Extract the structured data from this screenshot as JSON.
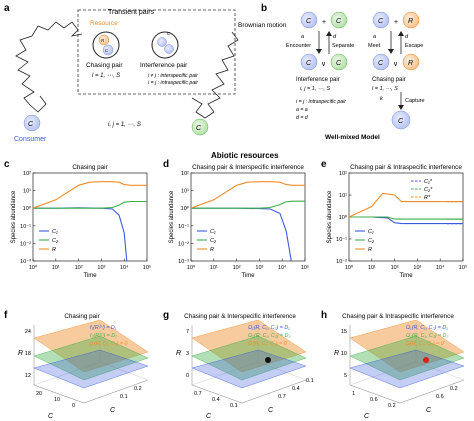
{
  "colors": {
    "blue": "#3b5bdb",
    "orange": "#f08c28",
    "green": "#3fae49",
    "light_blue": "#c9d3f5",
    "light_orange": "#f8c99a",
    "light_green": "#b9e6b0"
  },
  "panel_a": {
    "letter": "a",
    "box_title": "Transient pairs",
    "resource": "Resource",
    "chasing_pair": "Chasing pair",
    "interference_pair": "Interference pair",
    "rj": "R",
    "ci": "C",
    "cij": "C",
    "index_l": "l = 1, ⋯, S",
    "index_ij": "i ≠ j : interspecific pair",
    "index_ii": "i = j : intraspecific pair",
    "brownian": "Brownian motion",
    "consumer": "Consumer",
    "c_left": "C",
    "c_right": "C",
    "bottom_index": "i, j = 1, ⋯, S"
  },
  "panel_b": {
    "letter": "b",
    "encounter": "Encounter",
    "separate": "Separate",
    "meet": "Meet",
    "escape": "Escape",
    "capture": "Capture",
    "interference_pair": "Interference pair",
    "chasing_pair": "Chasing pair",
    "a_ij": "a",
    "d_ij": "d",
    "a_il": "a",
    "d_il": "d",
    "k_il": "k",
    "idx_ij": "i, j = 1, ⋯, S",
    "idx_l": "l = 1, ⋯, S",
    "note_1": "i = j : intraspecific pair",
    "note_2": "a = a",
    "note_3": "d = d",
    "well_mixed": "Well-mixed Model"
  },
  "section_title": "Abiotic resources",
  "chart_data": [
    {
      "panel": "c",
      "type": "line",
      "title": "Chasing pair",
      "xlabel": "Time",
      "ylabel": "Species abundance",
      "x_scale": "log",
      "xlim": [
        1,
        100000
      ],
      "ylim": [
        0.001,
        100
      ],
      "y_scale": "log",
      "x_ticks": [
        "10⁰",
        "10¹",
        "10²",
        "10³",
        "10⁴",
        "10⁵"
      ],
      "y_ticks": [
        "10⁻³",
        "10⁻²",
        "10⁻¹",
        "10⁰",
        "10¹",
        "10²"
      ],
      "series": [
        {
          "name": "C₁",
          "color": "#3b5bdb",
          "x": [
            1,
            10,
            100,
            1000,
            3000,
            6000,
            10000,
            13000
          ],
          "y": [
            1.0,
            1.0,
            1.05,
            1.0,
            0.9,
            0.4,
            0.04,
            0.001
          ]
        },
        {
          "name": "C₂",
          "color": "#3fae49",
          "x": [
            1,
            10,
            100,
            1000,
            3000,
            6000,
            10000,
            20000,
            100000
          ],
          "y": [
            1.0,
            1.0,
            1.0,
            1.0,
            1.1,
            1.5,
            2.2,
            2.4,
            2.4
          ]
        },
        {
          "name": "R",
          "color": "#f08c28",
          "x": [
            1,
            10,
            100,
            300,
            1000,
            3000,
            6000,
            10000,
            20000,
            100000
          ],
          "y": [
            1.0,
            3.0,
            20,
            30,
            32,
            32,
            30,
            22,
            20,
            20
          ]
        }
      ]
    },
    {
      "panel": "d",
      "type": "line",
      "title": "Chasing pair & Interspecific interference",
      "xlabel": "Time",
      "ylabel": "Species abundance",
      "x_scale": "log",
      "xlim": [
        1,
        100000
      ],
      "ylim": [
        0.001,
        100
      ],
      "y_scale": "log",
      "x_ticks": [
        "10⁰",
        "10¹",
        "10²",
        "10³",
        "10⁴",
        "10⁵"
      ],
      "y_ticks": [
        "10⁻³",
        "10⁻²",
        "10⁻¹",
        "10⁰",
        "10¹",
        "10²"
      ],
      "series": [
        {
          "name": "C₁",
          "color": "#3b5bdb",
          "x": [
            1,
            10,
            100,
            1000,
            3000,
            8000,
            15000,
            25000
          ],
          "y": [
            1.0,
            1.0,
            1.0,
            0.95,
            0.9,
            0.5,
            0.05,
            0.001
          ]
        },
        {
          "name": "C₂",
          "color": "#3fae49",
          "x": [
            1,
            10,
            100,
            1000,
            3000,
            8000,
            15000,
            30000,
            100000
          ],
          "y": [
            1.0,
            1.0,
            1.0,
            1.0,
            1.1,
            1.6,
            2.3,
            2.5,
            2.5
          ]
        },
        {
          "name": "R",
          "color": "#f08c28",
          "x": [
            1,
            10,
            100,
            300,
            1000,
            3000,
            8000,
            15000,
            30000,
            100000
          ],
          "y": [
            1.0,
            3.0,
            20,
            30,
            32,
            32,
            30,
            22,
            20,
            20
          ]
        }
      ]
    },
    {
      "panel": "e",
      "type": "line",
      "title": "Chasing pair & Intraspecific interference",
      "xlabel": "Time",
      "ylabel": "Species abundance",
      "x_scale": "log",
      "xlim": [
        1,
        100000
      ],
      "ylim": [
        0.01,
        100
      ],
      "y_scale": "log",
      "x_ticks": [
        "10⁰",
        "10¹",
        "10²",
        "10³",
        "10⁴",
        "10⁵"
      ],
      "y_ticks": [
        "10⁻²",
        "10⁻¹",
        "10⁰",
        "10¹",
        "10²"
      ],
      "series": [
        {
          "name": "C₁",
          "color": "#3b5bdb",
          "x": [
            1,
            10,
            50,
            100,
            200,
            1000,
            10000,
            100000
          ],
          "y": [
            1.0,
            1.0,
            0.9,
            0.55,
            0.5,
            0.5,
            0.5,
            0.5
          ]
        },
        {
          "name": "C₂",
          "color": "#3fae49",
          "x": [
            1,
            10,
            50,
            100,
            200,
            1000,
            10000,
            100000
          ],
          "y": [
            1.0,
            1.0,
            1.0,
            0.8,
            0.8,
            0.8,
            0.8,
            0.8
          ]
        },
        {
          "name": "R",
          "color": "#f08c28",
          "x": [
            1,
            10,
            30,
            100,
            200,
            1000,
            10000,
            100000
          ],
          "y": [
            1.0,
            3.0,
            12,
            10,
            5.0,
            5.0,
            5.0,
            5.0
          ]
        }
      ],
      "reference_lines": [
        {
          "label": "C₁*",
          "color": "#3b5bdb",
          "y": 0.5,
          "x_from": 20000,
          "x_to": 100000
        },
        {
          "label": "C₂*",
          "color": "#3fae49",
          "y": 0.8,
          "x_from": 20000,
          "x_to": 100000
        },
        {
          "label": "R*",
          "color": "#f08c28",
          "y": 5.0,
          "x_from": 20000,
          "x_to": 100000
        }
      ]
    }
  ],
  "panels_3d": [
    {
      "letter": "f",
      "title": "Chasing pair",
      "z_label": "R",
      "z_ticks": [
        "24",
        "18",
        "12"
      ],
      "x_label": "C",
      "y_label": "C",
      "x_ticks": [
        "20",
        "10",
        "0"
      ],
      "y_ticks": [
        "0.1",
        "0.2"
      ],
      "legend": [
        {
          "text": "f₁(R⁽¹⁾) = D₁",
          "color": "#3b5bdb"
        },
        {
          "text": "f₂(R⁽²⁾) = D₂",
          "color": "#3fae49"
        },
        {
          "text": "g′(R, C₁, C₂) = 0",
          "color": "#f08c28"
        }
      ]
    },
    {
      "letter": "g",
      "title": "Chasing pair & Interspecific interference",
      "z_label": "R",
      "z_ticks": [
        "7",
        "3",
        "0"
      ],
      "x_label": "C",
      "y_label": "C",
      "x_ticks": [
        "0.7",
        "0.4",
        "0.1"
      ],
      "y_ticks": [
        "0.7",
        "0.4",
        "0.1"
      ],
      "legend": [
        {
          "text": "Ω₁(R, C₁, C₂) = D₁",
          "color": "#3b5bdb"
        },
        {
          "text": "Ω₂(R, C₁, C₂) = D₂",
          "color": "#3fae49"
        },
        {
          "text": "G′(R, C₁, C₂) = 0",
          "color": "#f08c28"
        }
      ]
    },
    {
      "letter": "h",
      "title": "Chasing pair & Intraspecific interference",
      "z_label": "R",
      "z_ticks": [
        "15",
        "10",
        "5"
      ],
      "x_label": "C",
      "y_label": "C",
      "x_ticks": [
        "1",
        "0.6",
        "0.2"
      ],
      "y_ticks": [
        "0.6",
        "0.2"
      ],
      "legend": [
        {
          "text": "Ω₁(R, C₁, C₂) = D₁",
          "color": "#3b5bdb"
        },
        {
          "text": "Ω₂(R, C₁, C₂) = D₂",
          "color": "#3fae49"
        },
        {
          "text": "G(R, C₁, C₂) = 0",
          "color": "#f08c28"
        }
      ]
    }
  ]
}
